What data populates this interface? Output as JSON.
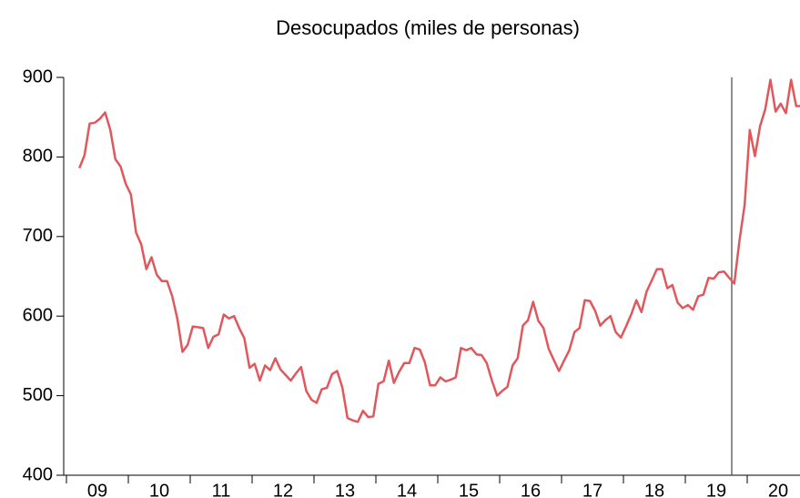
{
  "chart_data": {
    "type": "line",
    "title": "Desocupados (miles de personas)",
    "year_labels": [
      "09",
      "10",
      "11",
      "12",
      "13",
      "14",
      "15",
      "16",
      "17",
      "18",
      "19",
      "20"
    ],
    "series": [
      {
        "color": "#e0575c",
        "values": [
          786,
          802,
          842,
          843,
          848,
          856,
          834,
          797,
          788,
          766,
          753,
          705,
          690,
          659,
          674,
          652,
          644,
          644,
          625,
          597,
          555,
          564,
          587,
          586,
          585,
          560,
          574,
          577,
          602,
          597,
          600,
          585,
          572,
          535,
          540,
          519,
          538,
          532,
          547,
          533,
          526,
          519,
          528,
          536,
          506,
          495,
          491,
          508,
          510,
          527,
          531,
          510,
          472,
          469,
          467,
          481,
          473,
          474,
          515,
          518,
          544,
          516,
          530,
          541,
          541,
          560,
          558,
          542,
          513,
          513,
          523,
          518,
          520,
          523,
          560,
          557,
          560,
          552,
          551,
          541,
          519,
          500,
          506,
          511,
          538,
          547,
          588,
          595,
          618,
          594,
          585,
          559,
          545,
          531,
          544,
          557,
          580,
          585,
          620,
          619,
          607,
          588,
          595,
          600,
          580,
          573,
          587,
          602,
          620,
          605,
          631,
          645,
          659,
          659,
          635,
          639,
          617,
          610,
          614,
          608,
          625,
          627,
          648,
          647,
          655,
          656,
          648,
          641,
          695,
          740,
          834,
          801,
          839,
          860,
          897,
          857,
          867,
          855,
          897,
          864,
          864
        ]
      }
    ],
    "ylim": [
      400,
      900
    ],
    "yticks": [
      400,
      500,
      600,
      700,
      800,
      900
    ]
  }
}
